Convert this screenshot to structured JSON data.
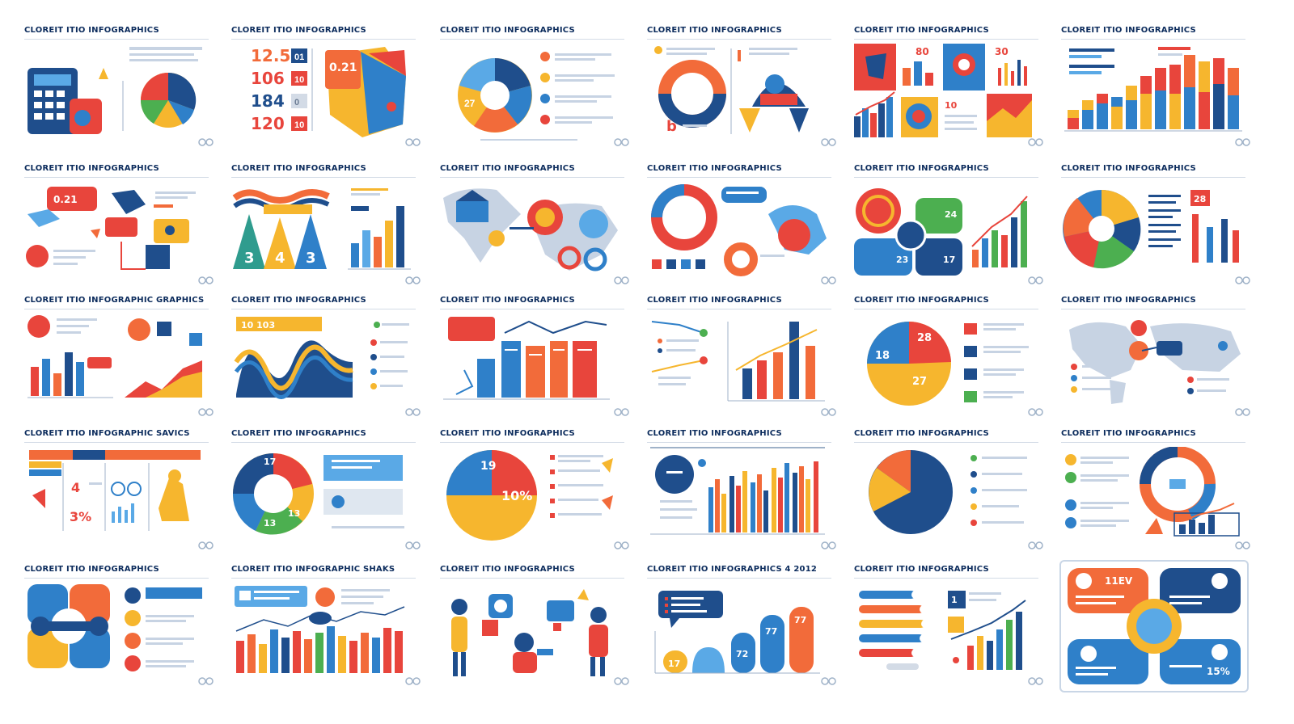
{
  "colors": {
    "navy": "#1f4e8c",
    "blue": "#2f80c9",
    "sky": "#5aa9e6",
    "orange": "#f26b3a",
    "red": "#e8453c",
    "yellow": "#f6b62e",
    "green": "#4caf50",
    "text_dark": "#0b2b5c",
    "text_gray": "#6b7c93"
  },
  "cards": [
    {
      "title": "CLOREIT ITIO INFOGRAPHICS"
    },
    {
      "title": "CLOREIT ITIO INFOGRAPHICS",
      "numbers": [
        "12.5",
        "106",
        "184",
        "120"
      ],
      "badges": [
        "01",
        "10",
        "0",
        "10"
      ],
      "callout": "0.21"
    },
    {
      "title": "CLOREIT ITIO INFOGRAPHICS",
      "center_label": "27"
    },
    {
      "title": "CLOREIT ITIO INFOGRAPHICS",
      "letter": "b"
    },
    {
      "title": "CLOREIT ITIO INFOGRAPHICS",
      "labels": [
        "80",
        "30",
        "10"
      ]
    },
    {
      "title": "CLOREIT ITIO INFOGRAPHICS"
    },
    {
      "title": "CLOREIT ITIO INFOGRAPHICS",
      "callout": "0.21"
    },
    {
      "title": "CLOREIT ITIO INFOGRAPHICS",
      "triangles": [
        "3",
        "4",
        "3"
      ]
    },
    {
      "title": "CLOREIT ITIO INFOGRAPHICS"
    },
    {
      "title": "CLOREIT ITIO INFOGRAPHICS"
    },
    {
      "title": "CLOREIT ITIO INFOGRAPHICS",
      "labels": [
        "24",
        "23",
        "17"
      ]
    },
    {
      "title": "CLOREIT ITIO INFOGRAPHICS",
      "labels": [
        "28"
      ]
    },
    {
      "title": "CLOREIT ITIO INFOGRAPHIC GRAPHICS"
    },
    {
      "title": "CLOREIT ITIO INFOGRAPHICS",
      "banner": "10 103"
    },
    {
      "title": "CLOREIT ITIO INFOGRAPHICS"
    },
    {
      "title": "CLOREIT ITIO INFOGRAPHICS"
    },
    {
      "title": "CLOREIT ITIO INFOGRAPHICS",
      "labels": [
        "18",
        "28",
        "27"
      ]
    },
    {
      "title": "CLOREIT ITIO INFOGRAPHICS"
    },
    {
      "title": "CLOREIT ITIO INFOGRAPHIC SAVICS",
      "numbers": [
        "4",
        "3%"
      ]
    },
    {
      "title": "CLOREIT ITIO INFOGRAPHICS",
      "labels": [
        "17",
        "13",
        "13"
      ]
    },
    {
      "title": "CLOREIT ITIO INFOGRAPHICS",
      "labels": [
        "19",
        "10%"
      ]
    },
    {
      "title": "CLOREIT ITIO INFOGRAPHICS"
    },
    {
      "title": "CLOREIT ITIO INFOGRAPHICS"
    },
    {
      "title": "CLOREIT ITIO INFOGRAPHICS"
    },
    {
      "title": "CLOREIT ITIO INFOGRAPHICS"
    },
    {
      "title": "CLOREIT ITIO INFOGRAPHIC SHAKS"
    },
    {
      "title": "CLOREIT ITIO INFOGRAPHICS"
    },
    {
      "title": "CLOREIT ITIO INFOGRAPHICS 4 2012",
      "labels": [
        "17",
        "72",
        "77",
        "77"
      ]
    },
    {
      "title": "CLOREIT ITIO INFOGRAPHICS",
      "labels": [
        "1"
      ]
    },
    {
      "title": "",
      "labels": [
        "11EV",
        "15%"
      ]
    }
  ]
}
